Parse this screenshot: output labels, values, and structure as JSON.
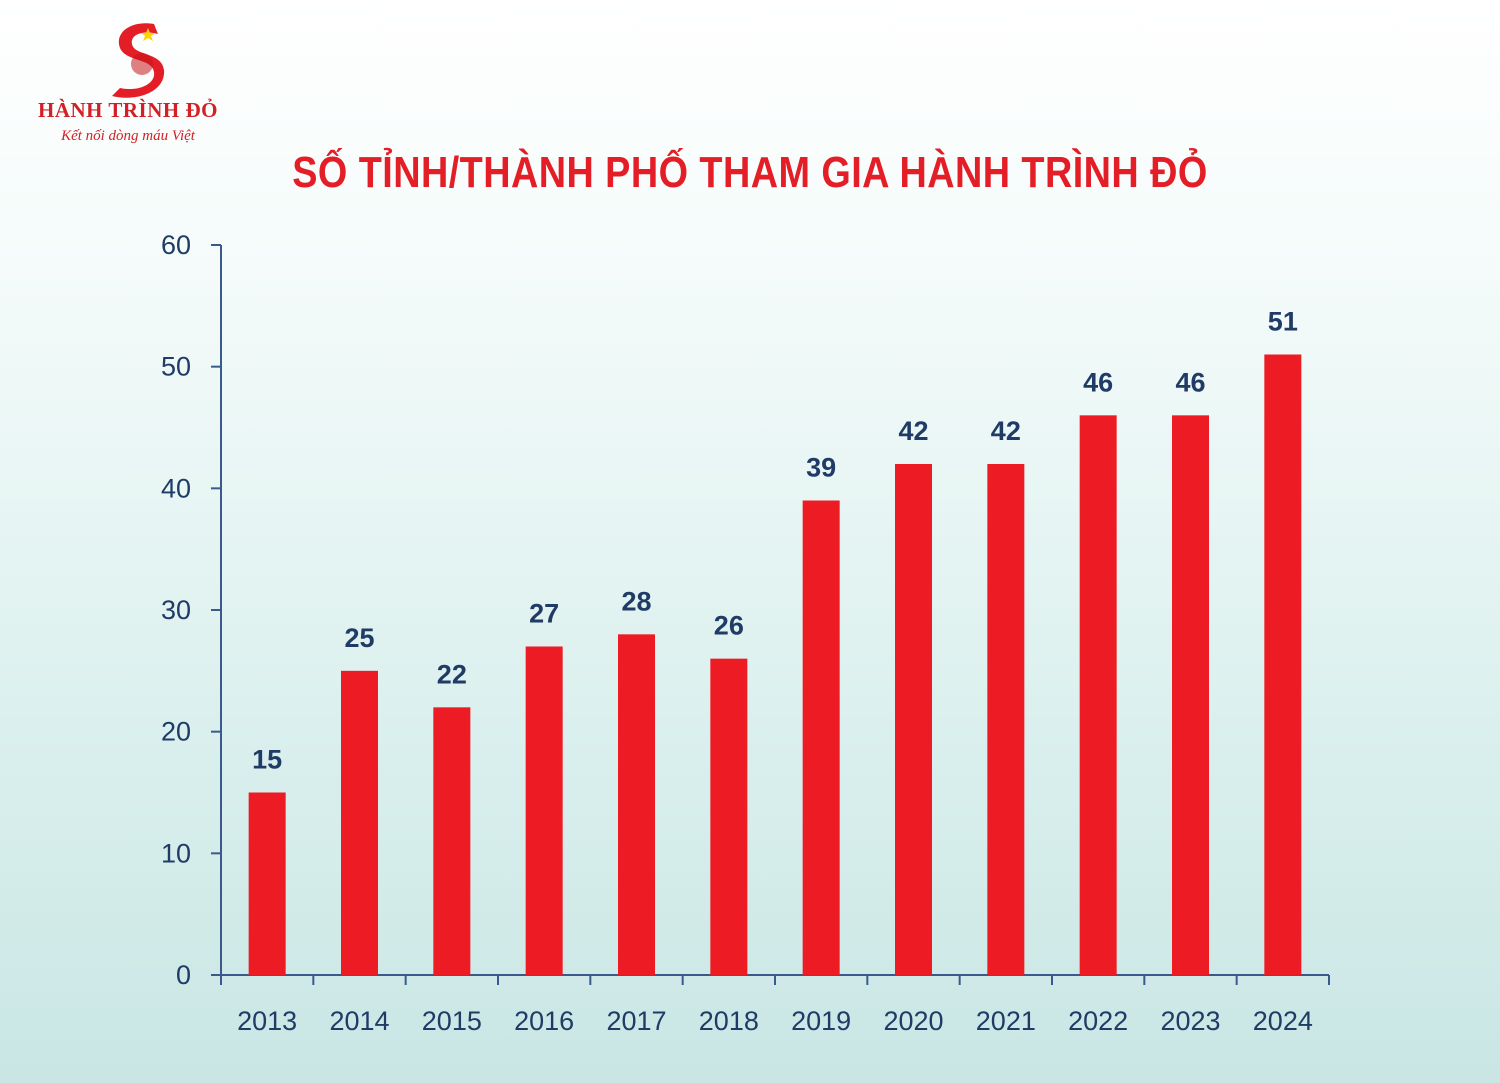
{
  "logo": {
    "name": "HÀNH TRÌNH ĐỎ",
    "tagline": "Kết nối dòng máu Việt"
  },
  "colors": {
    "bar": "#ed1c24",
    "axis": "#3a5a8c",
    "label": "#1f3b66",
    "title": "#e41e26"
  },
  "chart_data": {
    "type": "bar",
    "title": "SỐ TỈNH/THÀNH PHỐ THAM GIA HÀNH TRÌNH ĐỎ",
    "xlabel": "",
    "ylabel": "",
    "categories": [
      "2013",
      "2014",
      "2015",
      "2016",
      "2017",
      "2018",
      "2019",
      "2020",
      "2021",
      "2022",
      "2023",
      "2024"
    ],
    "values": [
      15,
      25,
      22,
      27,
      28,
      26,
      39,
      42,
      42,
      46,
      46,
      51
    ],
    "ylim": [
      0,
      60
    ],
    "yticks": [
      0,
      10,
      20,
      30,
      40,
      50,
      60
    ],
    "grid": false,
    "legend": "none",
    "data_labels": true
  }
}
